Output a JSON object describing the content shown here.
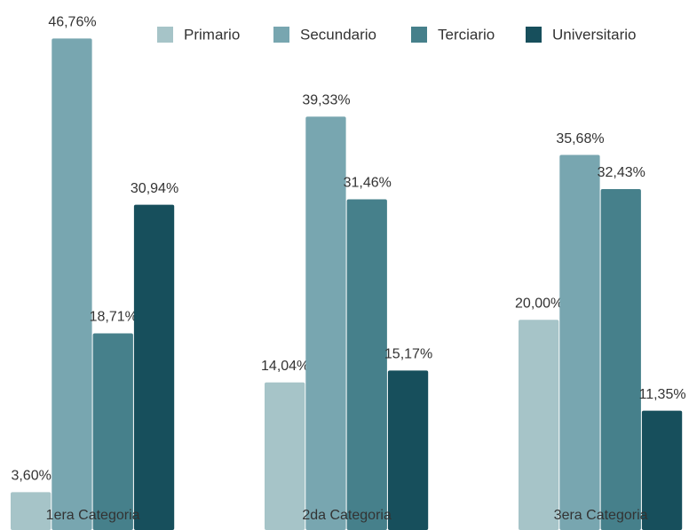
{
  "chart_data": {
    "type": "bar",
    "categories": [
      "1era Categoria",
      "2da Categoria",
      "3era Categoria"
    ],
    "series": [
      {
        "name": "Primario",
        "color": "#a6c4c8",
        "values": [
          3.6,
          14.04,
          20.0
        ],
        "value_labels": [
          "3,60%",
          "14,04%",
          "20,00%"
        ]
      },
      {
        "name": "Secundario",
        "color": "#78a6b0",
        "values": [
          46.76,
          39.33,
          35.68
        ],
        "value_labels": [
          "46,76%",
          "39,33%",
          "35,68%"
        ]
      },
      {
        "name": "Terciario",
        "color": "#46808b",
        "values": [
          18.71,
          31.46,
          32.43
        ],
        "value_labels": [
          "18,71%",
          "31,46%",
          "32,43%"
        ]
      },
      {
        "name": "Universitario",
        "color": "#174f5c",
        "values": [
          30.94,
          15.17,
          11.35
        ],
        "value_labels": [
          "30,94%",
          "15,17%",
          "11,35%"
        ]
      }
    ],
    "ylim": [
      0,
      50
    ],
    "legend": "top-right"
  }
}
